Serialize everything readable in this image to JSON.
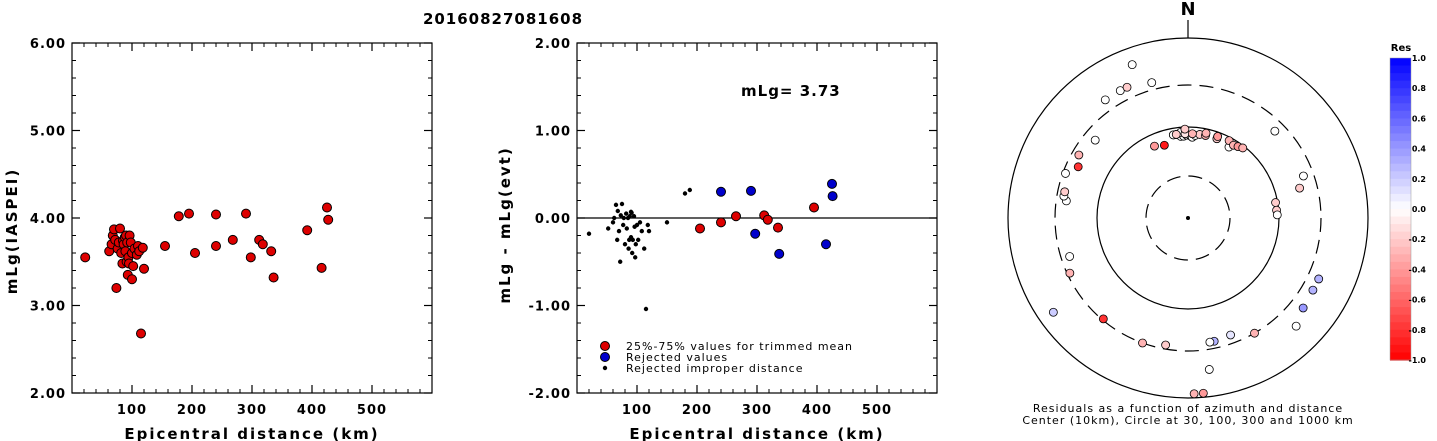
{
  "title": "20160827081608",
  "chart_data": [
    {
      "type": "scatter",
      "xlabel": "Epicentral distance (km)",
      "ylabel": "mLg(IASPEI)",
      "xlim": [
        0,
        600
      ],
      "ylim": [
        2.0,
        6.0
      ],
      "xticks": [
        "100",
        "200",
        "300",
        "400",
        "500"
      ],
      "yticks": [
        "2.00",
        "3.00",
        "4.00",
        "5.00",
        "6.00"
      ],
      "series": [
        {
          "color": "#dd0000",
          "x": [
            22,
            62,
            66,
            68,
            70,
            72,
            74,
            76,
            78,
            80,
            82,
            84,
            85,
            86,
            88,
            89,
            90,
            91,
            92,
            93,
            94,
            95,
            96,
            98,
            100,
            100,
            102,
            104,
            108,
            110,
            112,
            115,
            118,
            120,
            155,
            178,
            195,
            205,
            240,
            240,
            268,
            290,
            298,
            312,
            318,
            332,
            336,
            392,
            416,
            425,
            427
          ],
          "y": [
            3.55,
            3.62,
            3.7,
            3.8,
            3.87,
            3.75,
            3.2,
            3.65,
            3.72,
            3.88,
            3.6,
            3.48,
            3.74,
            3.7,
            3.78,
            3.62,
            3.8,
            3.5,
            3.72,
            3.35,
            3.55,
            3.48,
            3.8,
            3.72,
            3.3,
            3.6,
            3.45,
            3.65,
            3.58,
            3.68,
            3.62,
            2.68,
            3.66,
            3.42,
            3.68,
            4.02,
            4.05,
            3.6,
            3.68,
            4.04,
            3.75,
            4.05,
            3.55,
            3.75,
            3.7,
            3.62,
            3.32,
            3.86,
            3.43,
            4.12,
            3.98
          ]
        }
      ]
    },
    {
      "type": "scatter",
      "xlabel": "Epicentral distance (km)",
      "ylabel": "mLg - mLg(evt)",
      "xlim": [
        0,
        600
      ],
      "ylim": [
        -2.0,
        2.0
      ],
      "xticks": [
        "100",
        "200",
        "300",
        "400",
        "500"
      ],
      "yticks": [
        "-2.00",
        "-1.00",
        "0.00",
        "1.00",
        "2.00"
      ],
      "annotation": "mLg= 3.73",
      "legend": [
        "25%-75% values for trimmed mean",
        "Rejected values",
        "Rejected improper distance"
      ],
      "series": [
        {
          "name": "25%-75% values for trimmed mean",
          "color": "#dd0000",
          "x": [
            205,
            240,
            265,
            312,
            318,
            335,
            395
          ],
          "y": [
            -0.12,
            -0.05,
            0.02,
            0.03,
            -0.02,
            -0.11,
            0.12
          ]
        },
        {
          "name": "Rejected values",
          "color": "#0000cc",
          "x": [
            240,
            290,
            297,
            337,
            415,
            425,
            426
          ],
          "y": [
            0.3,
            0.31,
            -0.18,
            -0.41,
            -0.3,
            0.39,
            0.25
          ]
        },
        {
          "name": "Rejected improper distance",
          "color": "#000000",
          "x": [
            20,
            52,
            60,
            62,
            65,
            67,
            68,
            70,
            72,
            73,
            75,
            77,
            78,
            80,
            82,
            83,
            85,
            86,
            87,
            88,
            90,
            90,
            91,
            92,
            93,
            95,
            96,
            97,
            98,
            100,
            102,
            105,
            108,
            112,
            115,
            118,
            120,
            150,
            180,
            188
          ],
          "y": [
            -0.18,
            -0.12,
            -0.05,
            0.0,
            0.15,
            -0.25,
            0.08,
            -0.15,
            -0.5,
            0.03,
            0.16,
            -0.08,
            0.0,
            -0.3,
            0.05,
            -0.12,
            0.0,
            -0.35,
            -0.25,
            0.02,
            0.07,
            -0.22,
            0.06,
            -0.4,
            -0.25,
            0.02,
            -0.1,
            -0.45,
            -0.3,
            -0.08,
            -0.25,
            -0.05,
            -0.15,
            -0.35,
            -1.04,
            -0.08,
            -0.15,
            -0.05,
            0.28,
            0.32
          ]
        }
      ]
    },
    {
      "type": "scatter",
      "title": "N",
      "caption": [
        "Residuals as a function of azimuth and distance",
        "Center (10km), Circle at 30, 100, 300 and 1000 km"
      ],
      "colorbar_title": "Res",
      "colorbar_ticks": [
        "1.0",
        "0.8",
        "0.6",
        "0.4",
        "0.2",
        "0.0",
        "-0.2",
        "-0.4",
        "-0.6",
        "-0.8",
        "-1.0"
      ],
      "axis_range": [
        -1.0,
        1.0
      ],
      "points": {
        "azimuth_deg": [
          -10,
          -8,
          -5,
          -3,
          -1,
          2,
          3,
          5,
          8,
          12,
          20,
          30,
          45,
          70,
          75,
          80,
          85,
          88,
          -82,
          -80,
          -78,
          -60,
          -50,
          -35,
          -28,
          -25,
          -20,
          -15,
          -10,
          -5,
          -2,
          -65,
          -70,
          -25,
          -18,
          -2,
          3,
          -8,
          12,
          20,
          28,
          32,
          35,
          38,
          115,
          120,
          128,
          135,
          150,
          160,
          168,
          170,
          172,
          175,
          178,
          -170,
          -160,
          -140,
          -125,
          -115,
          -108
        ],
        "distance_km": [
          85,
          85,
          80,
          80,
          82,
          80,
          78,
          82,
          85,
          85,
          85,
          80,
          230,
          230,
          190,
          95,
          95,
          96,
          230,
          250,
          250,
          250,
          220,
          400,
          400,
          400,
          650,
          360,
          85,
          88,
          85,
          220,
          280,
          75,
          70,
          95,
          85,
          85,
          90,
          90,
          92,
          88,
          91,
          95,
          400,
          400,
          420,
          500,
          300,
          240,
          250,
          250,
          500,
          900,
          900,
          270,
          300,
          290,
          670,
          280,
          240
        ],
        "residual": [
          0.0,
          0.0,
          0.0,
          0.0,
          0.0,
          0.0,
          0.0,
          0.0,
          -0.2,
          -0.3,
          -0.2,
          0.0,
          0.0,
          0.0,
          -0.2,
          -0.2,
          -0.2,
          0.0,
          0.0,
          0.0,
          -0.2,
          -0.3,
          0.0,
          0.0,
          0.0,
          -0.2,
          0.0,
          0.0,
          0.0,
          0.0,
          -0.1,
          -0.8,
          0.0,
          -0.4,
          -0.9,
          -0.2,
          -0.3,
          -0.2,
          -0.3,
          -0.4,
          -0.3,
          -0.3,
          -0.4,
          -0.3,
          0.3,
          0.3,
          0.4,
          0.0,
          -0.3,
          0.1,
          0.3,
          0.0,
          0.0,
          -0.4,
          -0.3,
          -0.2,
          -0.3,
          -0.8,
          0.2,
          -0.3,
          0.0
        ]
      }
    }
  ]
}
